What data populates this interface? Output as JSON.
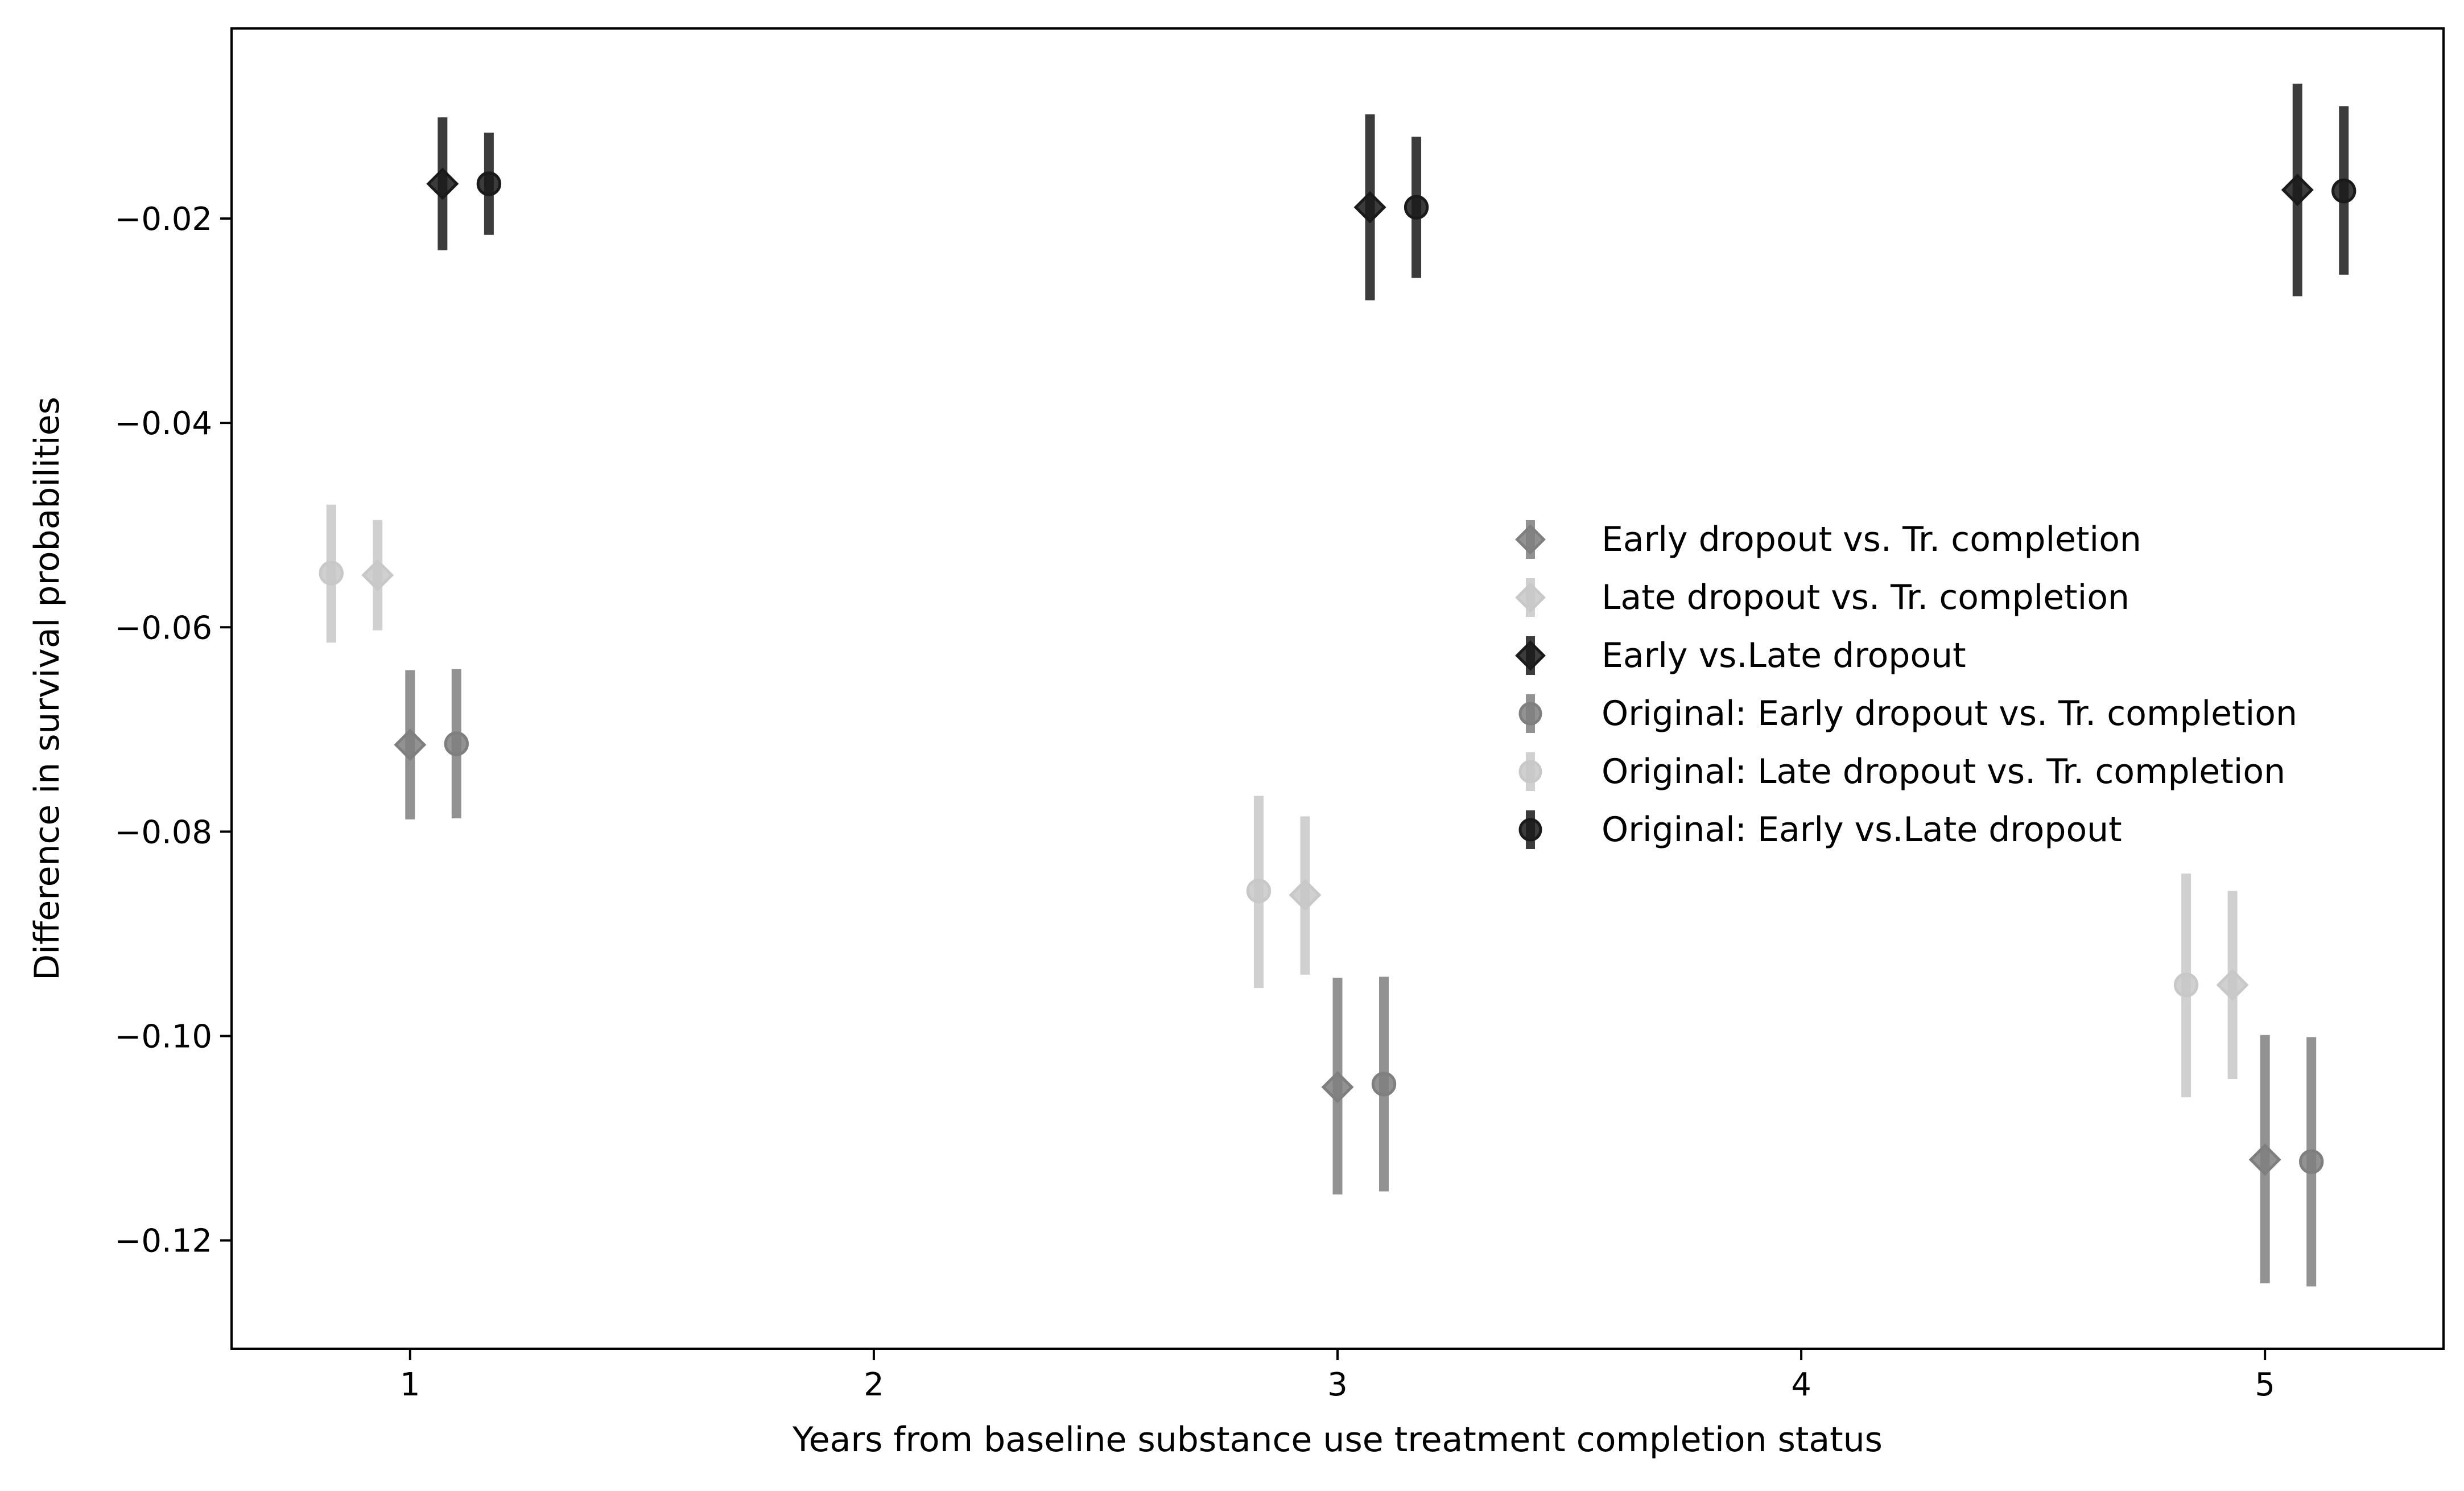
{
  "chart_data": {
    "type": "scatter",
    "title": "",
    "xlabel": "Years from baseline substance use treatment completion status",
    "ylabel": "Difference in survival probabilities",
    "xlim": [
      0.615,
      5.385
    ],
    "ylim": [
      -0.1306,
      -0.0014
    ],
    "xticks": [
      1,
      2,
      3,
      4,
      5
    ],
    "xtick_labels": [
      "1",
      "2",
      "3",
      "4",
      "5"
    ],
    "yticks": [
      -0.12,
      -0.1,
      -0.08,
      -0.06,
      -0.04,
      -0.02
    ],
    "ytick_labels": [
      "−0.12",
      "−0.10",
      "−0.08",
      "−0.06",
      "−0.04",
      "−0.02"
    ],
    "grid": false,
    "legend_position": "center-right",
    "series": [
      {
        "name": "Early dropout vs. Tr. completion",
        "marker": "diamond",
        "color": "#7f7f7f",
        "x": [
          1.0,
          3.0,
          5.0
        ],
        "y": [
          -0.0715,
          -0.105,
          -0.1121
        ],
        "ci_low": [
          -0.0788,
          -0.1155,
          -0.1242
        ],
        "ci_high": [
          -0.0642,
          -0.0943,
          -0.0999
        ]
      },
      {
        "name": "Late dropout vs. Tr. completion",
        "marker": "diamond",
        "color": "#c8c8c8",
        "x": [
          0.93,
          2.93,
          4.93
        ],
        "y": [
          -0.0549,
          -0.0862,
          -0.095
        ],
        "ci_low": [
          -0.0603,
          -0.094,
          -0.1042
        ],
        "ci_high": [
          -0.0495,
          -0.0785,
          -0.0858
        ]
      },
      {
        "name": "Early vs.Late dropout",
        "marker": "diamond",
        "color": "#1a1a1a",
        "x": [
          1.07,
          3.07,
          5.07
        ],
        "y": [
          -0.0166,
          -0.0189,
          -0.0172
        ],
        "ci_low": [
          -0.0231,
          -0.028,
          -0.0276
        ],
        "ci_high": [
          -0.0101,
          -0.0098,
          -0.0068
        ]
      },
      {
        "name": "Original: Early dropout vs. Tr. completion",
        "marker": "circle",
        "color": "#7f7f7f",
        "x": [
          1.1,
          3.1,
          5.1
        ],
        "y": [
          -0.0714,
          -0.1047,
          -0.1123
        ],
        "ci_low": [
          -0.0787,
          -0.1152,
          -0.1245
        ],
        "ci_high": [
          -0.0641,
          -0.0942,
          -0.1001
        ]
      },
      {
        "name": "Original: Late dropout vs. Tr. completion",
        "marker": "circle",
        "color": "#c8c8c8",
        "x": [
          0.83,
          2.83,
          4.83
        ],
        "y": [
          -0.0547,
          -0.0858,
          -0.095
        ],
        "ci_low": [
          -0.0615,
          -0.0953,
          -0.106
        ],
        "ci_high": [
          -0.048,
          -0.0765,
          -0.0841
        ]
      },
      {
        "name": "Original: Early vs.Late dropout",
        "marker": "circle",
        "color": "#1a1a1a",
        "x": [
          1.17,
          3.17,
          5.17
        ],
        "y": [
          -0.0166,
          -0.0189,
          -0.0173
        ],
        "ci_low": [
          -0.0216,
          -0.0258,
          -0.0255
        ],
        "ci_high": [
          -0.0116,
          -0.012,
          -0.009
        ]
      }
    ]
  }
}
